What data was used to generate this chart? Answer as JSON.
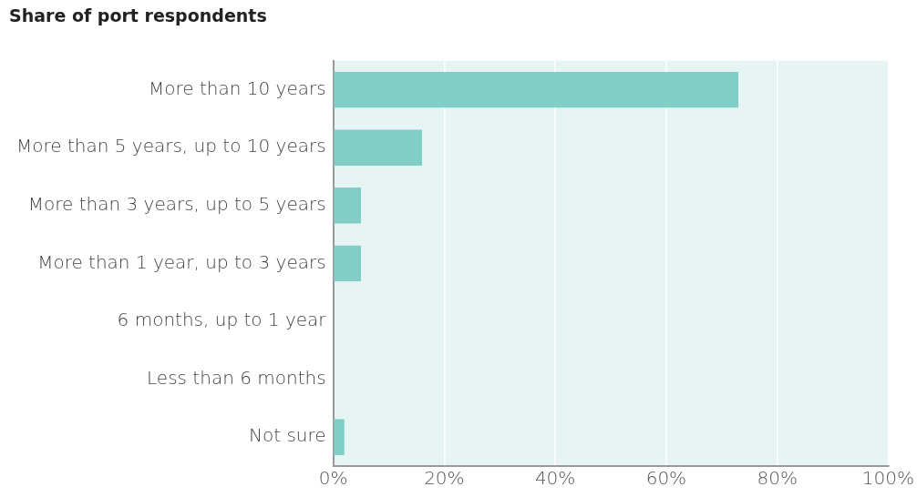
{
  "chart_data": {
    "type": "bar",
    "orientation": "horizontal",
    "title": "Share of port respondents",
    "categories": [
      "More than 10 years",
      "More than 5 years, up to 10 years",
      "More than 3 years, up to 5 years",
      "More than 1 year, up to 3 years",
      "6 months, up to 1 year",
      "Less than 6 months",
      "Not sure"
    ],
    "values": [
      73,
      16,
      5,
      5,
      0,
      0,
      2
    ],
    "color": "#81cec7",
    "xlim": [
      0,
      100
    ],
    "xticks": [
      {
        "value": 0,
        "label": "0%"
      },
      {
        "value": 20,
        "label": "20%"
      },
      {
        "value": 40,
        "label": "40%"
      },
      {
        "value": 60,
        "label": "60%"
      },
      {
        "value": 80,
        "label": "80%"
      },
      {
        "value": 100,
        "label": "100%"
      }
    ],
    "grid": "x",
    "legend": false
  }
}
